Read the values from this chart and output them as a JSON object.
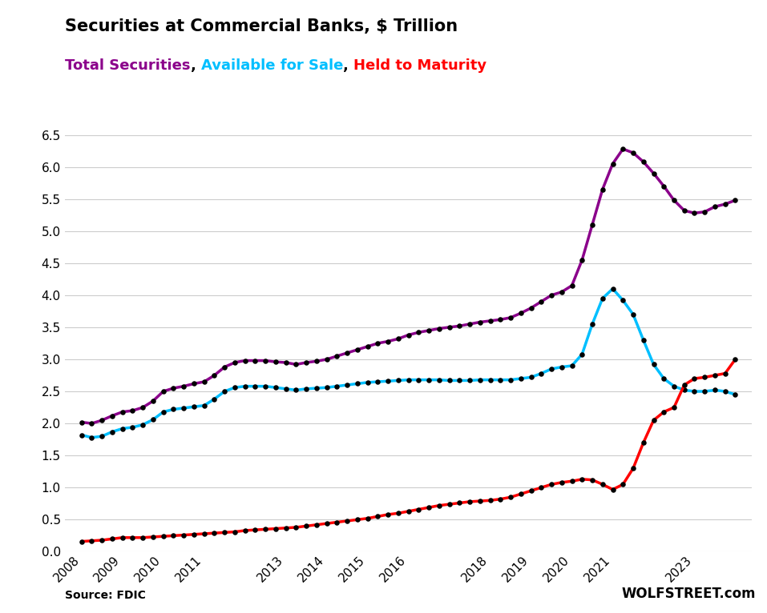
{
  "title": "Securities at Commercial Banks, $ Trillion",
  "subtitle_parts": [
    {
      "text": "Total Securities",
      "color": "#8B008B"
    },
    {
      "text": ", ",
      "color": "#000000"
    },
    {
      "text": "Available for Sale",
      "color": "#00BFFF"
    },
    {
      "text": ", ",
      "color": "#000000"
    },
    {
      "text": "Held to Maturity",
      "color": "#FF0000"
    }
  ],
  "source_left": "Source: FDIC",
  "source_right": "WOLFSTREET.com",
  "ylim": [
    0.0,
    6.5
  ],
  "yticks": [
    0.0,
    0.5,
    1.0,
    1.5,
    2.0,
    2.5,
    3.0,
    3.5,
    4.0,
    4.5,
    5.0,
    5.5,
    6.0,
    6.5
  ],
  "xtick_positions": [
    2008,
    2009,
    2010,
    2011,
    2013,
    2014,
    2015,
    2016,
    2018,
    2019,
    2020,
    2021,
    2023
  ],
  "xtick_labels": [
    "2008",
    "2009",
    "2010",
    "2011",
    "2013",
    "2014",
    "2015",
    "2016",
    "2018",
    "2019",
    "2020",
    "2021",
    "2023"
  ],
  "total_color": "#8B008B",
  "afs_color": "#00BFFF",
  "htm_color": "#FF0000",
  "dot_color": "#000000",
  "background_color": "#FFFFFF",
  "grid_color": "#CCCCCC",
  "total_x": [
    2008.0,
    2008.25,
    2008.5,
    2008.75,
    2009.0,
    2009.25,
    2009.5,
    2009.75,
    2010.0,
    2010.25,
    2010.5,
    2010.75,
    2011.0,
    2011.25,
    2011.5,
    2011.75,
    2012.0,
    2012.25,
    2012.5,
    2012.75,
    2013.0,
    2013.25,
    2013.5,
    2013.75,
    2014.0,
    2014.25,
    2014.5,
    2014.75,
    2015.0,
    2015.25,
    2015.5,
    2015.75,
    2016.0,
    2016.25,
    2016.5,
    2016.75,
    2017.0,
    2017.25,
    2017.5,
    2017.75,
    2018.0,
    2018.25,
    2018.5,
    2018.75,
    2019.0,
    2019.25,
    2019.5,
    2019.75,
    2020.0,
    2020.25,
    2020.5,
    2020.75,
    2021.0,
    2021.25,
    2021.5,
    2021.75,
    2022.0,
    2022.25,
    2022.5,
    2022.75,
    2023.0,
    2023.25,
    2023.5,
    2023.75,
    2024.0
  ],
  "total_y": [
    2.02,
    2.0,
    2.05,
    2.12,
    2.18,
    2.2,
    2.25,
    2.35,
    2.5,
    2.55,
    2.58,
    2.62,
    2.65,
    2.75,
    2.88,
    2.95,
    2.98,
    2.98,
    2.98,
    2.96,
    2.95,
    2.92,
    2.95,
    2.97,
    3.0,
    3.05,
    3.1,
    3.15,
    3.2,
    3.25,
    3.28,
    3.32,
    3.38,
    3.42,
    3.45,
    3.48,
    3.5,
    3.52,
    3.55,
    3.58,
    3.6,
    3.62,
    3.65,
    3.72,
    3.8,
    3.9,
    4.0,
    4.05,
    4.15,
    4.55,
    5.1,
    5.65,
    6.05,
    6.28,
    6.22,
    6.08,
    5.9,
    5.7,
    5.48,
    5.32,
    5.28,
    5.3,
    5.38,
    5.42,
    5.48
  ],
  "afs_x": [
    2008.0,
    2008.25,
    2008.5,
    2008.75,
    2009.0,
    2009.25,
    2009.5,
    2009.75,
    2010.0,
    2010.25,
    2010.5,
    2010.75,
    2011.0,
    2011.25,
    2011.5,
    2011.75,
    2012.0,
    2012.25,
    2012.5,
    2012.75,
    2013.0,
    2013.25,
    2013.5,
    2013.75,
    2014.0,
    2014.25,
    2014.5,
    2014.75,
    2015.0,
    2015.25,
    2015.5,
    2015.75,
    2016.0,
    2016.25,
    2016.5,
    2016.75,
    2017.0,
    2017.25,
    2017.5,
    2017.75,
    2018.0,
    2018.25,
    2018.5,
    2018.75,
    2019.0,
    2019.25,
    2019.5,
    2019.75,
    2020.0,
    2020.25,
    2020.5,
    2020.75,
    2021.0,
    2021.25,
    2021.5,
    2021.75,
    2022.0,
    2022.25,
    2022.5,
    2022.75,
    2023.0,
    2023.25,
    2023.5,
    2023.75,
    2024.0
  ],
  "afs_y": [
    1.82,
    1.78,
    1.8,
    1.87,
    1.92,
    1.94,
    1.98,
    2.06,
    2.18,
    2.22,
    2.24,
    2.26,
    2.28,
    2.38,
    2.5,
    2.56,
    2.58,
    2.58,
    2.58,
    2.56,
    2.54,
    2.52,
    2.54,
    2.55,
    2.56,
    2.58,
    2.6,
    2.62,
    2.64,
    2.65,
    2.66,
    2.67,
    2.68,
    2.68,
    2.68,
    2.68,
    2.67,
    2.67,
    2.67,
    2.68,
    2.68,
    2.68,
    2.68,
    2.7,
    2.72,
    2.78,
    2.85,
    2.88,
    2.9,
    3.08,
    3.55,
    3.95,
    4.1,
    3.92,
    3.7,
    3.3,
    2.92,
    2.7,
    2.58,
    2.52,
    2.5,
    2.5,
    2.52,
    2.5,
    2.45
  ],
  "htm_x": [
    2008.0,
    2008.25,
    2008.5,
    2008.75,
    2009.0,
    2009.25,
    2009.5,
    2009.75,
    2010.0,
    2010.25,
    2010.5,
    2010.75,
    2011.0,
    2011.25,
    2011.5,
    2011.75,
    2012.0,
    2012.25,
    2012.5,
    2012.75,
    2013.0,
    2013.25,
    2013.5,
    2013.75,
    2014.0,
    2014.25,
    2014.5,
    2014.75,
    2015.0,
    2015.25,
    2015.5,
    2015.75,
    2016.0,
    2016.25,
    2016.5,
    2016.75,
    2017.0,
    2017.25,
    2017.5,
    2017.75,
    2018.0,
    2018.25,
    2018.5,
    2018.75,
    2019.0,
    2019.25,
    2019.5,
    2019.75,
    2020.0,
    2020.25,
    2020.5,
    2020.75,
    2021.0,
    2021.25,
    2021.5,
    2021.75,
    2022.0,
    2022.25,
    2022.5,
    2022.75,
    2023.0,
    2023.25,
    2023.5,
    2023.75,
    2024.0
  ],
  "htm_y": [
    0.16,
    0.17,
    0.18,
    0.2,
    0.22,
    0.22,
    0.22,
    0.23,
    0.24,
    0.25,
    0.26,
    0.27,
    0.28,
    0.29,
    0.3,
    0.31,
    0.33,
    0.34,
    0.35,
    0.36,
    0.37,
    0.38,
    0.4,
    0.42,
    0.44,
    0.46,
    0.48,
    0.5,
    0.52,
    0.55,
    0.58,
    0.6,
    0.63,
    0.66,
    0.69,
    0.72,
    0.74,
    0.76,
    0.78,
    0.79,
    0.8,
    0.82,
    0.85,
    0.9,
    0.95,
    1.0,
    1.05,
    1.08,
    1.1,
    1.13,
    1.12,
    1.05,
    0.97,
    1.05,
    1.3,
    1.7,
    2.05,
    2.18,
    2.25,
    2.6,
    2.7,
    2.72,
    2.75,
    2.78,
    3.0
  ]
}
